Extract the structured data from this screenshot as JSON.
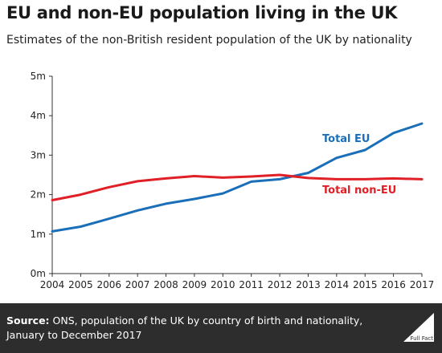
{
  "title": "EU and non-EU population living in the UK",
  "subtitle": "Estimates of the non-British resident population of the UK by nationality",
  "footer": {
    "source_label": "Source:",
    "source_text": "ONS, population of the UK by country of birth and nationality, January to December 2017",
    "logo_text": "Full Fact"
  },
  "colors": {
    "eu": "#1a6fb8",
    "non_eu": "#e01f26",
    "footer_bg": "#2d2d2d"
  },
  "chart_data": {
    "type": "line",
    "title": "EU and non-EU population living in the UK",
    "x": [
      "2004",
      "2005",
      "2006",
      "2007",
      "2008",
      "2009",
      "2010",
      "2011",
      "2012",
      "2013",
      "2014",
      "2015",
      "2016",
      "2017"
    ],
    "ylim": [
      0,
      5
    ],
    "y_ticks": [
      0,
      1,
      2,
      3,
      4,
      5
    ],
    "y_tick_labels": [
      "0m",
      "1m",
      "2m",
      "3m",
      "4m",
      "5m"
    ],
    "grid": false,
    "series": [
      {
        "name": "Total EU",
        "color": "#1a6fb8",
        "values": [
          1.07,
          1.19,
          1.39,
          1.6,
          1.77,
          1.89,
          2.03,
          2.33,
          2.39,
          2.55,
          2.93,
          3.13,
          3.56,
          3.8
        ]
      },
      {
        "name": "Total non-EU",
        "color": "#e01f26",
        "values": [
          1.86,
          2.0,
          2.19,
          2.34,
          2.41,
          2.47,
          2.43,
          2.46,
          2.5,
          2.42,
          2.39,
          2.39,
          2.41,
          2.39
        ]
      }
    ]
  }
}
